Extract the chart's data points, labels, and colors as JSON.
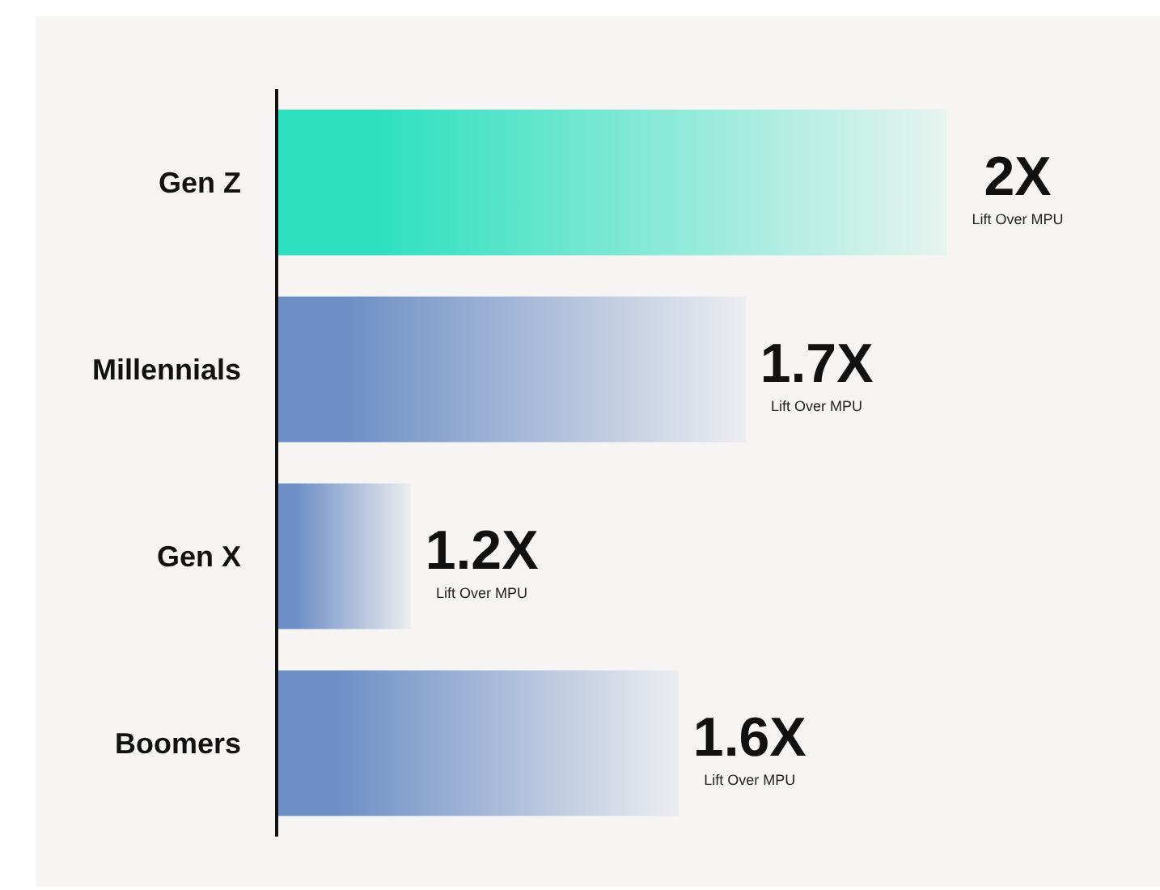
{
  "chart_data": {
    "type": "bar",
    "orientation": "horizontal",
    "categories": [
      "Gen Z",
      "Millennials",
      "Gen X",
      "Boomers"
    ],
    "values": [
      2,
      1.7,
      1.2,
      1.6
    ],
    "xlim": [
      1,
      2
    ],
    "colors": [
      "#2ee0c0",
      "#6e8fc6",
      "#6e8fc6",
      "#6e8fc6"
    ],
    "value_labels": [
      "2X",
      "1.7X",
      "1.2X",
      "1.6X"
    ],
    "annotations": [
      "Lift Over MPU",
      "Lift Over MPU",
      "Lift Over MPU",
      "Lift Over MPU"
    ]
  }
}
